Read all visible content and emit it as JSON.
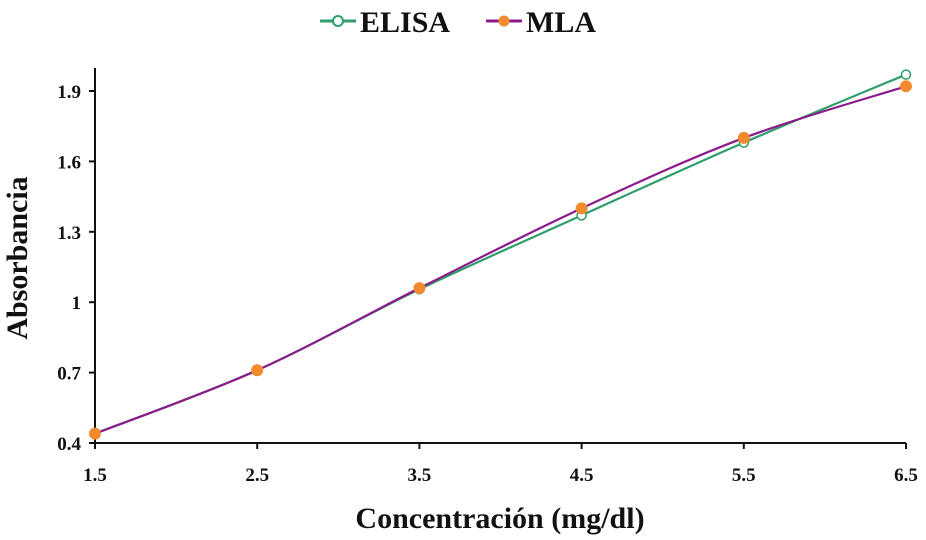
{
  "chart_data": {
    "type": "line",
    "title": "",
    "xlabel": "Concentración (mg/dl)",
    "ylabel": "Absorbancia",
    "x": [
      1.5,
      2.5,
      3.5,
      4.5,
      5.5,
      6.5
    ],
    "x_tick_labels": [
      "1.5",
      "2.5",
      "3.5",
      "4.5",
      "5.5",
      "6.5"
    ],
    "y_tick_labels": [
      "0.4",
      "0.7",
      "1",
      "1.3",
      "1.6",
      "1.9"
    ],
    "xlim": [
      1.5,
      6.5
    ],
    "ylim": [
      0.4,
      2.0
    ],
    "series": [
      {
        "name": "ELISA",
        "color": "#2e9e6a",
        "marker": "open-circle",
        "values": [
          0.44,
          0.71,
          1.055,
          1.37,
          1.68,
          1.97
        ]
      },
      {
        "name": "MLA",
        "color": "#8b1a8b",
        "marker_color": "#f28a30",
        "marker": "filled-circle",
        "values": [
          0.44,
          0.71,
          1.06,
          1.4,
          1.7,
          1.92
        ]
      }
    ],
    "legend_position": "top-center",
    "grid": false
  }
}
